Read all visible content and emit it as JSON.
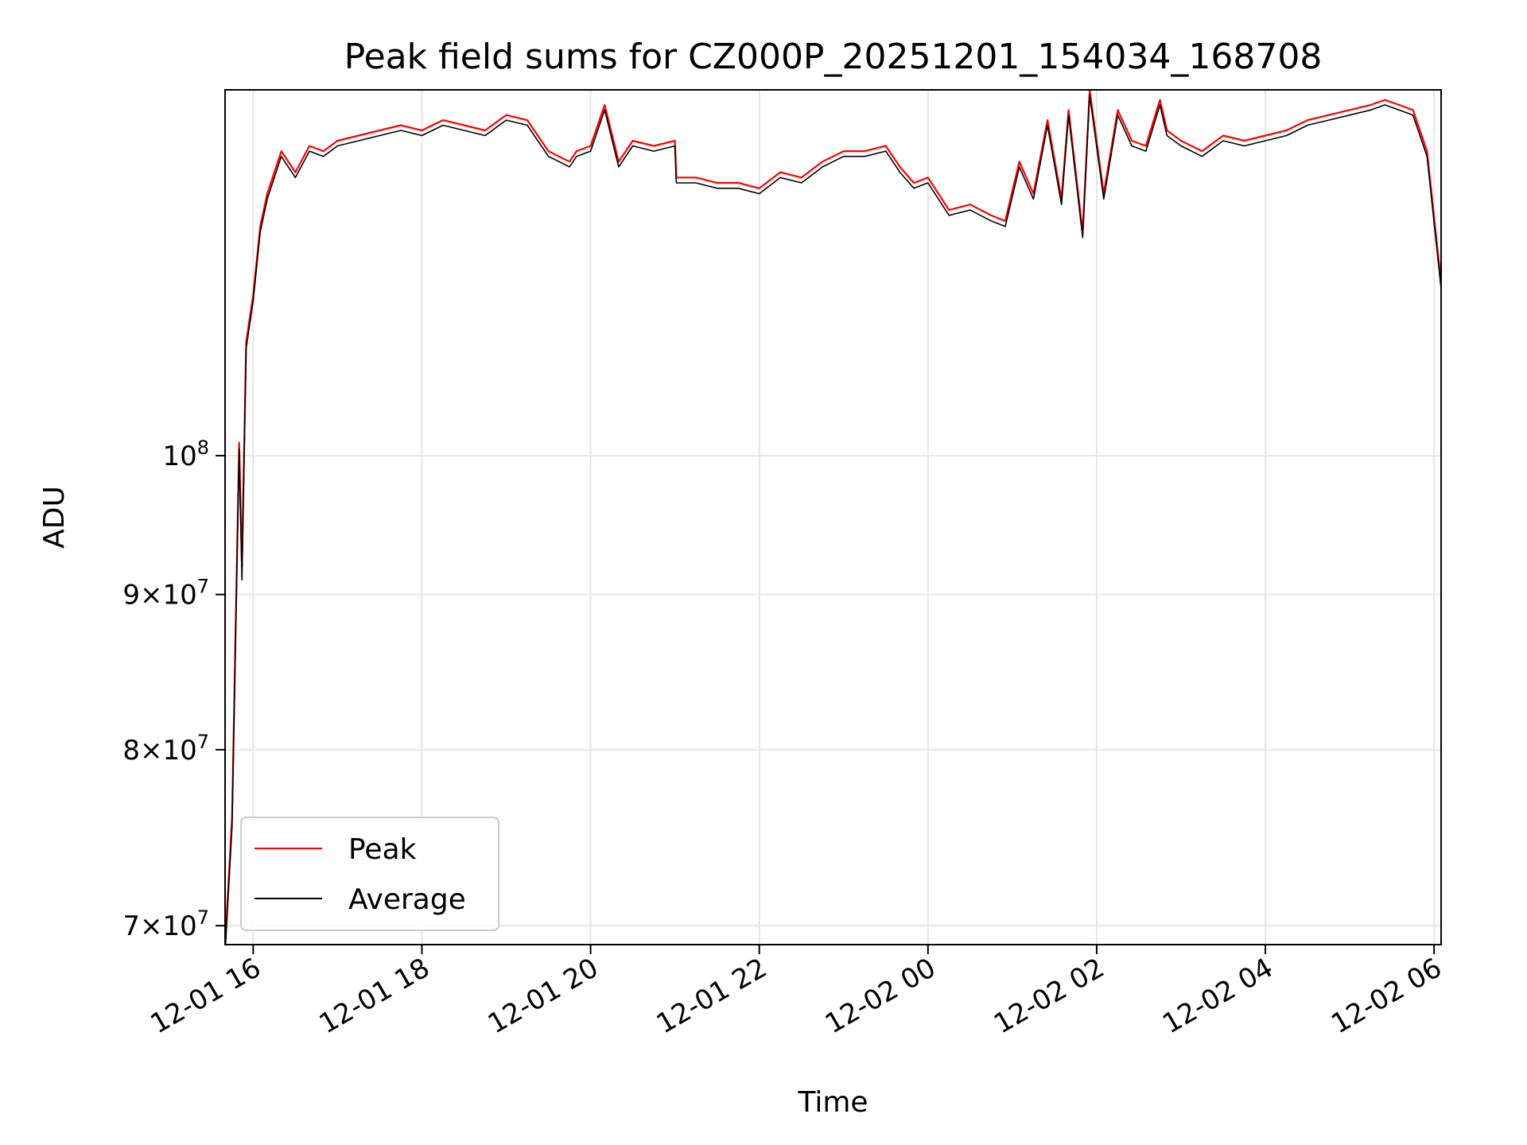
{
  "chart_data": {
    "type": "line",
    "title": "Peak field sums for CZ000P_20251201_154034_168708",
    "xlabel": "Time",
    "ylabel": "ADU",
    "y_scale": "log",
    "xlim": [
      "2025-12-01 15:40",
      "2025-12-02 06:05"
    ],
    "ylim": [
      69000000,
      132000000
    ],
    "grid": true,
    "legend_position": "lower-left",
    "x_ticks": [
      {
        "value": "2025-12-01 16:00",
        "label": "12-01 16"
      },
      {
        "value": "2025-12-01 18:00",
        "label": "12-01 18"
      },
      {
        "value": "2025-12-01 20:00",
        "label": "12-01 20"
      },
      {
        "value": "2025-12-01 22:00",
        "label": "12-01 22"
      },
      {
        "value": "2025-12-02 00:00",
        "label": "12-02 00"
      },
      {
        "value": "2025-12-02 02:00",
        "label": "12-02 02"
      },
      {
        "value": "2025-12-02 04:00",
        "label": "12-02 04"
      },
      {
        "value": "2025-12-02 06:00",
        "label": "12-02 06"
      }
    ],
    "y_ticks": [
      {
        "value": 70000000,
        "mantissa": "7",
        "exponent": "7"
      },
      {
        "value": 80000000,
        "mantissa": "8",
        "exponent": "7"
      },
      {
        "value": 90000000,
        "mantissa": "9",
        "exponent": "7"
      },
      {
        "value": 100000000,
        "mantissa": "",
        "exponent": "8"
      }
    ],
    "x": [
      "2025-12-01 15:40",
      "2025-12-01 15:45",
      "2025-12-01 15:50",
      "2025-12-01 15:52",
      "2025-12-01 15:55",
      "2025-12-01 16:00",
      "2025-12-01 16:05",
      "2025-12-01 16:10",
      "2025-12-01 16:20",
      "2025-12-01 16:30",
      "2025-12-01 16:40",
      "2025-12-01 16:50",
      "2025-12-01 17:00",
      "2025-12-01 17:15",
      "2025-12-01 17:30",
      "2025-12-01 17:45",
      "2025-12-01 18:00",
      "2025-12-01 18:15",
      "2025-12-01 18:30",
      "2025-12-01 18:45",
      "2025-12-01 19:00",
      "2025-12-01 19:15",
      "2025-12-01 19:30",
      "2025-12-01 19:45",
      "2025-12-01 19:50",
      "2025-12-01 20:00",
      "2025-12-01 20:10",
      "2025-12-01 20:20",
      "2025-12-01 20:30",
      "2025-12-01 20:45",
      "2025-12-01 21:00",
      "2025-12-01 21:01",
      "2025-12-01 21:15",
      "2025-12-01 21:30",
      "2025-12-01 21:45",
      "2025-12-01 22:00",
      "2025-12-01 22:15",
      "2025-12-01 22:30",
      "2025-12-01 22:45",
      "2025-12-01 23:00",
      "2025-12-01 23:15",
      "2025-12-01 23:30",
      "2025-12-01 23:40",
      "2025-12-01 23:50",
      "2025-12-02 00:00",
      "2025-12-02 00:15",
      "2025-12-02 00:30",
      "2025-12-02 00:45",
      "2025-12-02 00:55",
      "2025-12-02 01:05",
      "2025-12-02 01:15",
      "2025-12-02 01:25",
      "2025-12-02 01:35",
      "2025-12-02 01:40",
      "2025-12-02 01:50",
      "2025-12-02 01:55",
      "2025-12-02 02:05",
      "2025-12-02 02:15",
      "2025-12-02 02:25",
      "2025-12-02 02:35",
      "2025-12-02 02:45",
      "2025-12-02 02:50",
      "2025-12-02 03:00",
      "2025-12-02 03:15",
      "2025-12-02 03:30",
      "2025-12-02 03:45",
      "2025-12-02 04:00",
      "2025-12-02 04:15",
      "2025-12-02 04:30",
      "2025-12-02 04:45",
      "2025-12-02 05:00",
      "2025-12-02 05:15",
      "2025-12-02 05:25",
      "2025-12-02 05:35",
      "2025-12-02 05:45",
      "2025-12-02 05:55",
      "2025-12-02 06:05"
    ],
    "series": [
      {
        "name": "Peak",
        "color": "#ff0000",
        "values": [
          69000000,
          76000000,
          101000000,
          92000000,
          109000000,
          113000000,
          119000000,
          122000000,
          126000000,
          124000000,
          126500000,
          126000000,
          127000000,
          127500000,
          128000000,
          128500000,
          128000000,
          129000000,
          128500000,
          128000000,
          129500000,
          129000000,
          126000000,
          125000000,
          126000000,
          126500000,
          130500000,
          125000000,
          127000000,
          126500000,
          127000000,
          123500000,
          123500000,
          123000000,
          123000000,
          122500000,
          124000000,
          123500000,
          125000000,
          126000000,
          126000000,
          126500000,
          124500000,
          123000000,
          123500000,
          120500000,
          121000000,
          120000000,
          119500000,
          125000000,
          122000000,
          129000000,
          121500000,
          130000000,
          118500000,
          132000000,
          122000000,
          130000000,
          127000000,
          126500000,
          131000000,
          128000000,
          127000000,
          126000000,
          127500000,
          127000000,
          127500000,
          128000000,
          129000000,
          129500000,
          130000000,
          130500000,
          131000000,
          130500000,
          130000000,
          126000000,
          114000000
        ]
      },
      {
        "name": "Average",
        "color": "#000000",
        "values": [
          68500000,
          75500000,
          100500000,
          91000000,
          108500000,
          112500000,
          118500000,
          121500000,
          125500000,
          123500000,
          126000000,
          125500000,
          126500000,
          127000000,
          127500000,
          128000000,
          127500000,
          128500000,
          128000000,
          127500000,
          129000000,
          128500000,
          125500000,
          124500000,
          125500000,
          126000000,
          130000000,
          124500000,
          126500000,
          126000000,
          126500000,
          123000000,
          123000000,
          122500000,
          122500000,
          122000000,
          123500000,
          123000000,
          124500000,
          125500000,
          125500000,
          126000000,
          124000000,
          122500000,
          123000000,
          120000000,
          120500000,
          119500000,
          119000000,
          124500000,
          121500000,
          128500000,
          121000000,
          129500000,
          118000000,
          131500000,
          121500000,
          129500000,
          126500000,
          126000000,
          130500000,
          127500000,
          126500000,
          125500000,
          127000000,
          126500000,
          127000000,
          127500000,
          128500000,
          129000000,
          129500000,
          130000000,
          130500000,
          130000000,
          129500000,
          125500000,
          113500000
        ]
      }
    ]
  }
}
